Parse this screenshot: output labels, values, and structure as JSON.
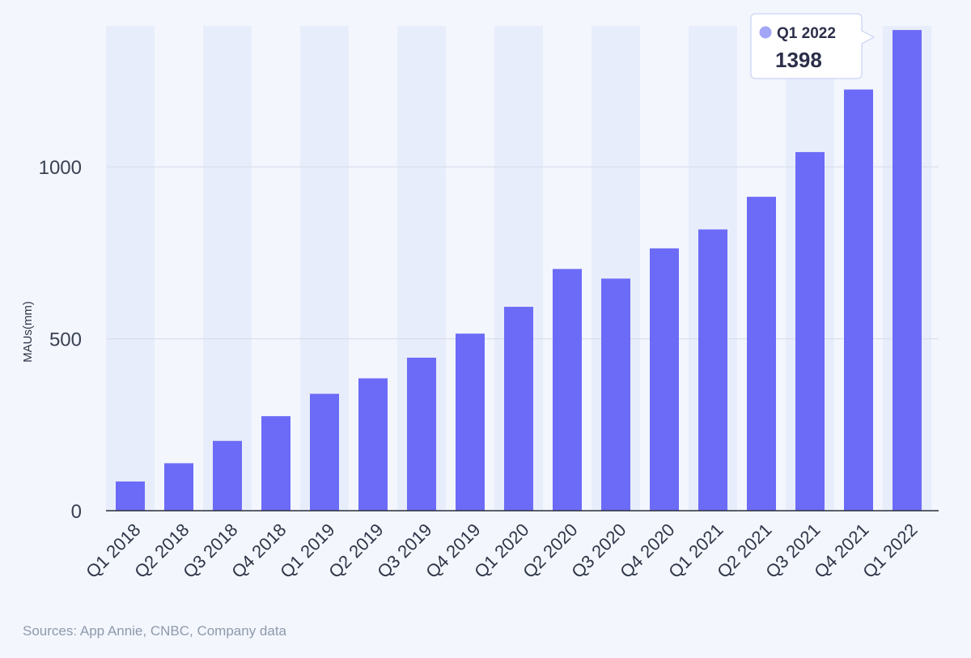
{
  "chart_data": {
    "type": "bar",
    "categories": [
      "Q1 2018",
      "Q2 2018",
      "Q3 2018",
      "Q4 2018",
      "Q1 2019",
      "Q2 2019",
      "Q3 2019",
      "Q4 2019",
      "Q1 2020",
      "Q2 2020",
      "Q3 2020",
      "Q4 2020",
      "Q1 2021",
      "Q2 2021",
      "Q3 2021",
      "Q4 2021",
      "Q1 2022"
    ],
    "values": [
      85,
      138,
      203,
      275,
      340,
      385,
      445,
      515,
      593,
      703,
      675,
      763,
      818,
      913,
      1043,
      1225,
      1398
    ],
    "ylabel": "MAUs(mm)",
    "ylim": [
      0,
      1410
    ],
    "yticks": [
      0,
      500,
      1000
    ],
    "grid": true,
    "bar_color": "#6c6bf7",
    "band_color": "#e8edfb",
    "tooltip": {
      "category": "Q1 2022",
      "value": "1398",
      "marker_color": "#a3a6f6"
    }
  },
  "footer": {
    "source": "Sources: App Annie, CNBC, Company data"
  }
}
